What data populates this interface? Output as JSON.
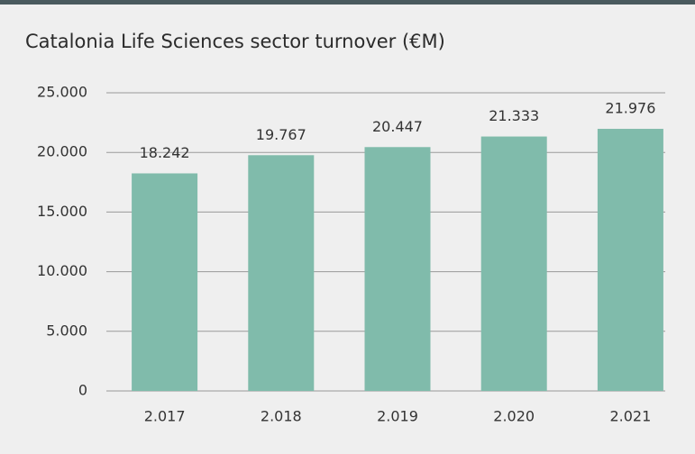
{
  "chart_data": {
    "type": "bar",
    "title": "Catalonia Life Sciences sector turnover (€M)",
    "categories": [
      "2.017",
      "2.018",
      "2.019",
      "2.020",
      "2.021"
    ],
    "values": [
      18242,
      19767,
      20447,
      21333,
      21976
    ],
    "value_labels": [
      "18.242",
      "19.767",
      "20.447",
      "21.333",
      "21.976"
    ],
    "color": "#80bbab",
    "ylim": [
      0,
      25000
    ],
    "yticks": [
      0,
      {
        "value": 5000,
        "label": "5.000"
      },
      {
        "value": 10000,
        "label": "10.000"
      },
      {
        "value": 15000,
        "label": "15.000"
      },
      {
        "value": 20000,
        "label": "20.000"
      },
      {
        "value": 25000,
        "label": "25.000"
      }
    ],
    "grid": true
  }
}
